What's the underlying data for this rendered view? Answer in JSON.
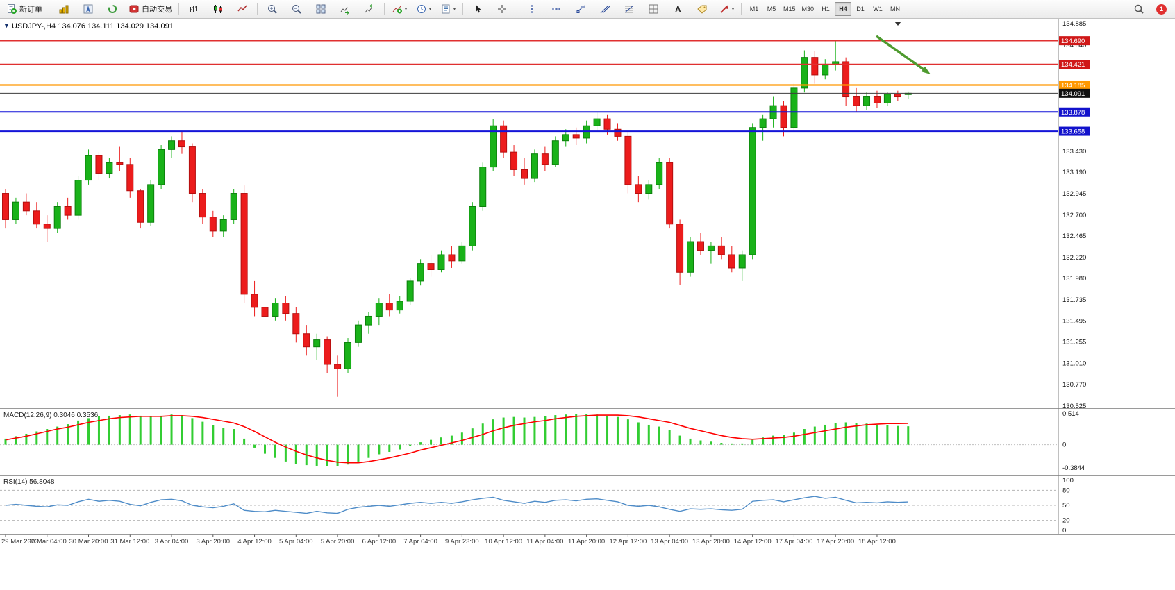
{
  "toolbar": {
    "new_order_label": "新订单",
    "autotrading_label": "自动交易",
    "timeframes": [
      "M1",
      "M5",
      "M15",
      "M30",
      "H1",
      "H4",
      "D1",
      "W1",
      "MN"
    ],
    "active_timeframe": "H4",
    "notification_count": "1",
    "icon_names": [
      "new-order-icon",
      "market-watch-icon",
      "navigator-icon",
      "terminal-icon",
      "autotrading-icon",
      "bars-icon",
      "candles-icon",
      "line-chart-icon",
      "zoom-in-icon",
      "zoom-out-icon",
      "tile-windows-icon",
      "auto-scroll-icon",
      "chart-shift-icon",
      "indicators-icon",
      "periods-icon",
      "templates-icon",
      "cursor-icon",
      "crosshair-icon",
      "horizontal-line-icon",
      "trendline-icon",
      "channel-icon",
      "fibonacci-icon",
      "shapes-icon",
      "text-icon",
      "label-icon",
      "arrows-icon",
      "search-icon",
      "notification-badge"
    ]
  },
  "chart": {
    "symbol_period": "USDJPY-,H4",
    "ohlc_text": "134.076 134.111 134.029 134.091"
  },
  "chart_data": {
    "type": "candlestick",
    "symbol": "USDJPY-",
    "timeframe": "H4",
    "title": "USDJPY-,H4 134.076 134.111 134.029 134.091",
    "ylim": [
      130.525,
      134.885
    ],
    "grid": false,
    "legend_position": "none",
    "colors": {
      "up": "#19b219",
      "up_border": "#0c800c",
      "down": "#ec1c1c",
      "down_border": "#b40f0f",
      "macd_hist": "#32cd32",
      "macd_signal": "#ff0000",
      "rsi_line": "#4e8cc8",
      "line_red": "#e03030",
      "line_orange": "#ff9800",
      "line_blue": "#1414d8",
      "line_current": "#3c3c3c"
    },
    "y_axis_labels": [
      "134.885",
      "134.640",
      "133.430",
      "133.190",
      "132.945",
      "132.700",
      "132.465",
      "132.220",
      "131.980",
      "131.735",
      "131.495",
      "131.255",
      "131.010",
      "130.770",
      "130.525"
    ],
    "x_labels": [
      "29 Mar 2023",
      "30 Mar 04:00",
      "30 Mar 20:00",
      "31 Mar 12:00",
      "3 Apr 04:00",
      "3 Apr 20:00",
      "4 Apr 12:00",
      "5 Apr 04:00",
      "5 Apr 20:00",
      "6 Apr 12:00",
      "7 Apr 04:00",
      "9 Apr 23:00",
      "10 Apr 12:00",
      "11 Apr 04:00",
      "11 Apr 20:00",
      "12 Apr 12:00",
      "13 Apr 04:00",
      "13 Apr 20:00",
      "14 Apr 12:00",
      "17 Apr 04:00",
      "17 Apr 20:00",
      "18 Apr 12:00"
    ],
    "candles_per_label": 4,
    "hlines": [
      {
        "price": 134.69,
        "label": "134.690",
        "color": "#e03030",
        "tag_bg": "#d01818",
        "width": 1.8
      },
      {
        "price": 134.421,
        "label": "134.421",
        "color": "#e03030",
        "tag_bg": "#d01818",
        "width": 1.8
      },
      {
        "price": 134.185,
        "label": "134.185",
        "color": "#ff9800",
        "tag_bg": "#ff9800",
        "width": 2.2
      },
      {
        "price": 133.878,
        "label": "133.878",
        "color": "#1414d8",
        "tag_bg": "#1212cc",
        "width": 2
      },
      {
        "price": 133.658,
        "label": "133.658",
        "color": "#1414d8",
        "tag_bg": "#1212cc",
        "width": 2
      },
      {
        "price": 134.091,
        "label": "134.091",
        "color": "#3c3c3c",
        "tag_bg": "#101010",
        "width": 1,
        "current": true
      }
    ],
    "candles": [
      [
        132.95,
        133.0,
        132.55,
        132.65
      ],
      [
        132.65,
        132.9,
        132.6,
        132.85
      ],
      [
        132.85,
        132.95,
        132.7,
        132.75
      ],
      [
        132.75,
        132.85,
        132.55,
        132.6
      ],
      [
        132.6,
        132.7,
        132.4,
        132.55
      ],
      [
        132.55,
        132.85,
        132.5,
        132.8
      ],
      [
        132.8,
        132.9,
        132.65,
        132.7
      ],
      [
        132.7,
        133.15,
        132.65,
        133.1
      ],
      [
        133.1,
        133.45,
        133.05,
        133.38
      ],
      [
        133.38,
        133.42,
        133.1,
        133.18
      ],
      [
        133.18,
        133.35,
        133.12,
        133.3
      ],
      [
        133.3,
        133.48,
        133.2,
        133.28
      ],
      [
        133.28,
        133.35,
        132.9,
        132.98
      ],
      [
        132.98,
        133.0,
        132.55,
        132.62
      ],
      [
        132.62,
        133.1,
        132.58,
        133.05
      ],
      [
        133.05,
        133.5,
        133.0,
        133.45
      ],
      [
        133.45,
        133.6,
        133.35,
        133.55
      ],
      [
        133.55,
        133.66,
        133.4,
        133.48
      ],
      [
        133.48,
        133.52,
        132.85,
        132.95
      ],
      [
        132.95,
        133.0,
        132.6,
        132.68
      ],
      [
        132.68,
        132.75,
        132.45,
        132.52
      ],
      [
        132.52,
        132.7,
        132.45,
        132.65
      ],
      [
        132.65,
        133.0,
        132.6,
        132.95
      ],
      [
        132.95,
        133.04,
        131.7,
        131.8
      ],
      [
        131.8,
        131.95,
        131.55,
        131.65
      ],
      [
        131.65,
        131.8,
        131.45,
        131.55
      ],
      [
        131.55,
        131.75,
        131.5,
        131.7
      ],
      [
        131.7,
        131.78,
        131.5,
        131.58
      ],
      [
        131.58,
        131.65,
        131.25,
        131.35
      ],
      [
        131.35,
        131.45,
        131.1,
        131.2
      ],
      [
        131.2,
        131.35,
        131.05,
        131.28
      ],
      [
        131.28,
        131.32,
        130.9,
        131.0
      ],
      [
        131.0,
        131.1,
        130.63,
        130.95
      ],
      [
        130.95,
        131.3,
        130.9,
        131.25
      ],
      [
        131.25,
        131.5,
        131.2,
        131.45
      ],
      [
        131.45,
        131.6,
        131.35,
        131.55
      ],
      [
        131.55,
        131.75,
        131.45,
        131.7
      ],
      [
        131.7,
        131.8,
        131.55,
        131.62
      ],
      [
        131.62,
        131.78,
        131.58,
        131.72
      ],
      [
        131.72,
        131.98,
        131.68,
        131.95
      ],
      [
        131.95,
        132.2,
        131.9,
        132.15
      ],
      [
        132.15,
        132.25,
        132.0,
        132.08
      ],
      [
        132.08,
        132.3,
        132.05,
        132.25
      ],
      [
        132.25,
        132.35,
        132.1,
        132.18
      ],
      [
        132.18,
        132.4,
        132.15,
        132.35
      ],
      [
        132.35,
        132.85,
        132.3,
        132.8
      ],
      [
        132.8,
        133.3,
        132.75,
        133.25
      ],
      [
        133.25,
        133.8,
        133.2,
        133.72
      ],
      [
        133.72,
        133.78,
        133.35,
        133.42
      ],
      [
        133.42,
        133.5,
        133.15,
        133.22
      ],
      [
        133.22,
        133.35,
        133.05,
        133.12
      ],
      [
        133.12,
        133.45,
        133.08,
        133.4
      ],
      [
        133.4,
        133.48,
        133.2,
        133.28
      ],
      [
        133.28,
        133.6,
        133.25,
        133.55
      ],
      [
        133.55,
        133.68,
        133.48,
        133.62
      ],
      [
        133.62,
        133.7,
        133.5,
        133.58
      ],
      [
        133.58,
        133.78,
        133.52,
        133.72
      ],
      [
        133.72,
        133.87,
        133.65,
        133.8
      ],
      [
        133.8,
        133.85,
        133.62,
        133.68
      ],
      [
        133.68,
        133.75,
        133.55,
        133.6
      ],
      [
        133.6,
        133.65,
        132.95,
        133.05
      ],
      [
        133.05,
        133.15,
        132.85,
        132.95
      ],
      [
        132.95,
        133.1,
        132.88,
        133.05
      ],
      [
        133.05,
        133.35,
        133.0,
        133.3
      ],
      [
        133.3,
        133.35,
        132.55,
        132.6
      ],
      [
        132.6,
        132.65,
        131.91,
        132.05
      ],
      [
        132.05,
        132.45,
        132.0,
        132.4
      ],
      [
        132.4,
        132.5,
        132.25,
        132.3
      ],
      [
        132.3,
        132.4,
        132.15,
        132.35
      ],
      [
        132.35,
        132.45,
        132.2,
        132.25
      ],
      [
        132.25,
        132.35,
        132.05,
        132.1
      ],
      [
        132.1,
        132.3,
        131.95,
        132.25
      ],
      [
        132.25,
        133.75,
        132.2,
        133.7
      ],
      [
        133.7,
        133.85,
        133.55,
        133.8
      ],
      [
        133.8,
        134.05,
        133.7,
        133.95
      ],
      [
        133.95,
        134.0,
        133.6,
        133.7
      ],
      [
        133.7,
        134.2,
        133.65,
        134.15
      ],
      [
        134.15,
        134.58,
        134.1,
        134.5
      ],
      [
        134.5,
        134.57,
        134.2,
        134.3
      ],
      [
        134.3,
        134.48,
        134.25,
        134.42
      ],
      [
        134.42,
        134.7,
        134.35,
        134.45
      ],
      [
        134.45,
        134.5,
        133.95,
        134.05
      ],
      [
        134.05,
        134.15,
        133.88,
        133.95
      ],
      [
        133.95,
        134.1,
        133.9,
        134.05
      ],
      [
        134.05,
        134.12,
        133.92,
        133.98
      ],
      [
        133.98,
        134.1,
        133.95,
        134.08
      ],
      [
        134.08,
        134.12,
        134.0,
        134.05
      ],
      [
        134.076,
        134.111,
        134.029,
        134.091
      ]
    ],
    "macd": {
      "label": "MACD(12,26,9)",
      "value_main": "0.3046",
      "value_signal": "0.3536",
      "axis": [
        {
          "label": "0.514",
          "value": 0.514
        },
        {
          "label": "0",
          "value": 0
        },
        {
          "label": "-0.3844",
          "value": -0.3844
        }
      ],
      "histogram": [
        0.1,
        0.14,
        0.18,
        0.22,
        0.26,
        0.3,
        0.34,
        0.4,
        0.44,
        0.47,
        0.48,
        0.49,
        0.5,
        0.48,
        0.47,
        0.48,
        0.5,
        0.49,
        0.44,
        0.38,
        0.32,
        0.28,
        0.26,
        0.1,
        -0.05,
        -0.15,
        -0.22,
        -0.28,
        -0.32,
        -0.34,
        -0.35,
        -0.36,
        -0.36,
        -0.33,
        -0.28,
        -0.22,
        -0.16,
        -0.12,
        -0.08,
        -0.02,
        0.04,
        0.08,
        0.12,
        0.15,
        0.2,
        0.27,
        0.35,
        0.42,
        0.45,
        0.46,
        0.45,
        0.46,
        0.47,
        0.49,
        0.5,
        0.51,
        0.514,
        0.5,
        0.48,
        0.46,
        0.42,
        0.37,
        0.33,
        0.3,
        0.24,
        0.15,
        0.1,
        0.07,
        0.05,
        0.03,
        0.02,
        0.02,
        0.08,
        0.12,
        0.15,
        0.16,
        0.2,
        0.26,
        0.3,
        0.33,
        0.36,
        0.37,
        0.36,
        0.35,
        0.33,
        0.32,
        0.31,
        0.3046
      ],
      "signal": [
        0.08,
        0.11,
        0.14,
        0.18,
        0.22,
        0.26,
        0.29,
        0.33,
        0.37,
        0.4,
        0.43,
        0.45,
        0.46,
        0.47,
        0.47,
        0.47,
        0.48,
        0.48,
        0.47,
        0.45,
        0.42,
        0.39,
        0.36,
        0.3,
        0.22,
        0.13,
        0.04,
        -0.04,
        -0.11,
        -0.17,
        -0.22,
        -0.26,
        -0.29,
        -0.3,
        -0.3,
        -0.28,
        -0.25,
        -0.22,
        -0.18,
        -0.14,
        -0.09,
        -0.05,
        -0.01,
        0.03,
        0.07,
        0.12,
        0.17,
        0.23,
        0.28,
        0.32,
        0.35,
        0.38,
        0.4,
        0.43,
        0.45,
        0.47,
        0.48,
        0.49,
        0.49,
        0.49,
        0.48,
        0.46,
        0.43,
        0.4,
        0.37,
        0.32,
        0.27,
        0.23,
        0.19,
        0.15,
        0.12,
        0.1,
        0.09,
        0.1,
        0.11,
        0.12,
        0.14,
        0.17,
        0.2,
        0.23,
        0.26,
        0.29,
        0.31,
        0.33,
        0.34,
        0.35,
        0.35,
        0.3536
      ]
    },
    "rsi": {
      "label": "RSI(14)",
      "value": "56.8048",
      "levels": [
        80,
        50,
        20
      ],
      "axis_labels": [
        "100",
        "80",
        "50",
        "20",
        "0"
      ],
      "values": [
        50,
        52,
        50,
        48,
        47,
        51,
        50,
        57,
        62,
        58,
        60,
        58,
        52,
        49,
        56,
        61,
        62,
        59,
        50,
        47,
        45,
        48,
        53,
        40,
        38,
        37,
        40,
        38,
        36,
        34,
        38,
        35,
        34,
        42,
        46,
        48,
        50,
        48,
        51,
        54,
        56,
        54,
        56,
        54,
        57,
        61,
        64,
        66,
        60,
        57,
        54,
        58,
        56,
        60,
        61,
        59,
        62,
        63,
        60,
        57,
        50,
        48,
        50,
        47,
        42,
        38,
        43,
        42,
        43,
        41,
        40,
        42,
        58,
        60,
        61,
        57,
        61,
        65,
        68,
        64,
        66,
        60,
        55,
        56,
        55,
        57,
        56,
        56.8
      ]
    },
    "arrow_annotation": {
      "color": "#4e9a2e",
      "direction": "down-right"
    }
  }
}
